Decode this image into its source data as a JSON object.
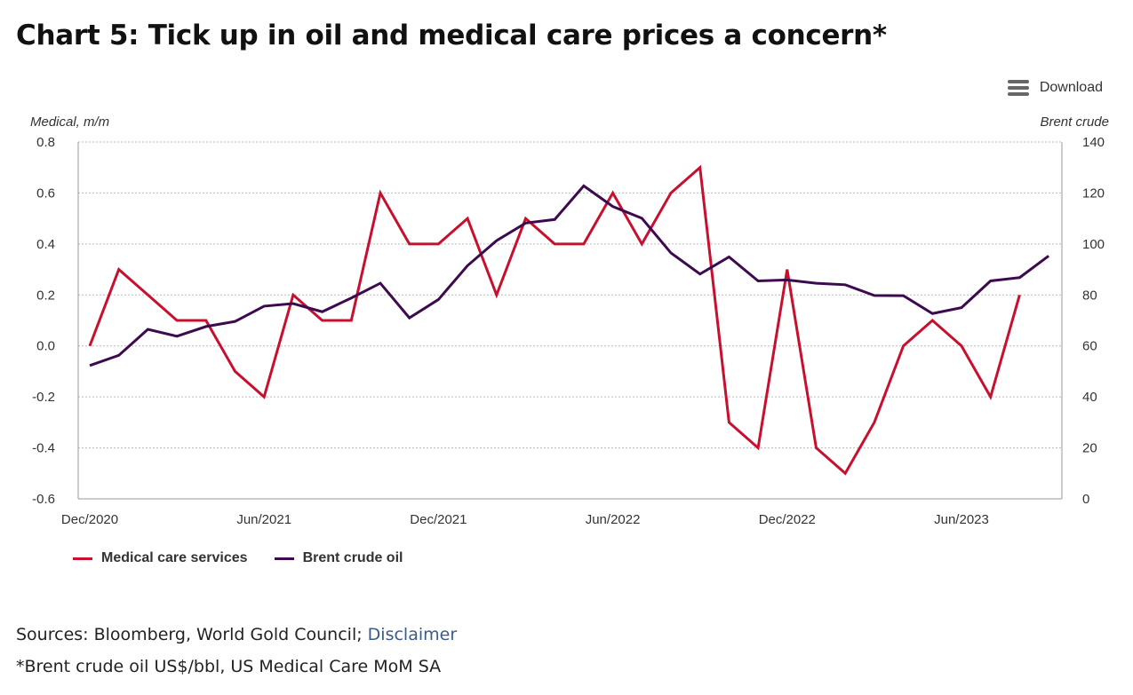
{
  "title": "Chart 5: Tick up in oil and medical care prices a concern*",
  "download_label": "Download",
  "footer": {
    "sources": "Sources: Bloomberg, World Gold Council; ",
    "disclaimer_link": "Disclaimer",
    "note": "*Brent crude oil US$/bbl, US Medical Care MoM SA"
  },
  "colors": {
    "medical": "#c8102e",
    "brent": "#3d0a4f"
  },
  "chart_data": {
    "type": "line",
    "ylabel": "Medical, m/m",
    "y2label": "Brent crude",
    "ylim": [
      -0.6,
      0.8
    ],
    "yticks": [
      "0.8",
      "0.6",
      "0.4",
      "0.2",
      "0.0",
      "-0.2",
      "-0.4",
      "-0.6"
    ],
    "y2lim": [
      0,
      140
    ],
    "y2ticks": [
      "140",
      "120",
      "100",
      "80",
      "60",
      "40",
      "20",
      "0"
    ],
    "grid": true,
    "legend": "bottom-left",
    "xticks": [
      "Dec/2020",
      "Jun/2021",
      "Dec/2021",
      "Jun/2022",
      "Dec/2022",
      "Jun/2023"
    ],
    "x": [
      "2020-12",
      "2021-01",
      "2021-02",
      "2021-03",
      "2021-04",
      "2021-05",
      "2021-06",
      "2021-07",
      "2021-08",
      "2021-09",
      "2021-10",
      "2021-11",
      "2021-12",
      "2022-01",
      "2022-02",
      "2022-03",
      "2022-04",
      "2022-05",
      "2022-06",
      "2022-07",
      "2022-08",
      "2022-09",
      "2022-10",
      "2022-11",
      "2022-12",
      "2023-01",
      "2023-02",
      "2023-03",
      "2023-04",
      "2023-05",
      "2023-06",
      "2023-07",
      "2023-08",
      "2023-09"
    ],
    "series": [
      {
        "name": "Medical care services",
        "axis": "left",
        "values": [
          0.0,
          0.3,
          0.2,
          0.1,
          0.1,
          -0.1,
          -0.2,
          0.2,
          0.1,
          0.1,
          0.6,
          0.4,
          0.4,
          0.5,
          0.2,
          0.5,
          0.4,
          0.4,
          0.6,
          0.4,
          0.6,
          0.7,
          -0.3,
          -0.4,
          0.3,
          -0.4,
          -0.5,
          -0.3,
          0.0,
          0.1,
          0.0,
          -0.2,
          0.2,
          null
        ]
      },
      {
        "name": "Brent crude oil",
        "axis": "right",
        "values": [
          52.3,
          56.3,
          66.5,
          63.8,
          67.6,
          69.6,
          75.6,
          76.6,
          73.4,
          78.8,
          84.6,
          71.0,
          78.2,
          91.5,
          101.3,
          108.2,
          109.6,
          122.8,
          114.7,
          110.1,
          96.5,
          88.2,
          94.9,
          85.5,
          85.9,
          84.6,
          84.0,
          79.8,
          79.7,
          72.7,
          75.0,
          85.5,
          86.8,
          95.3
        ]
      }
    ]
  }
}
